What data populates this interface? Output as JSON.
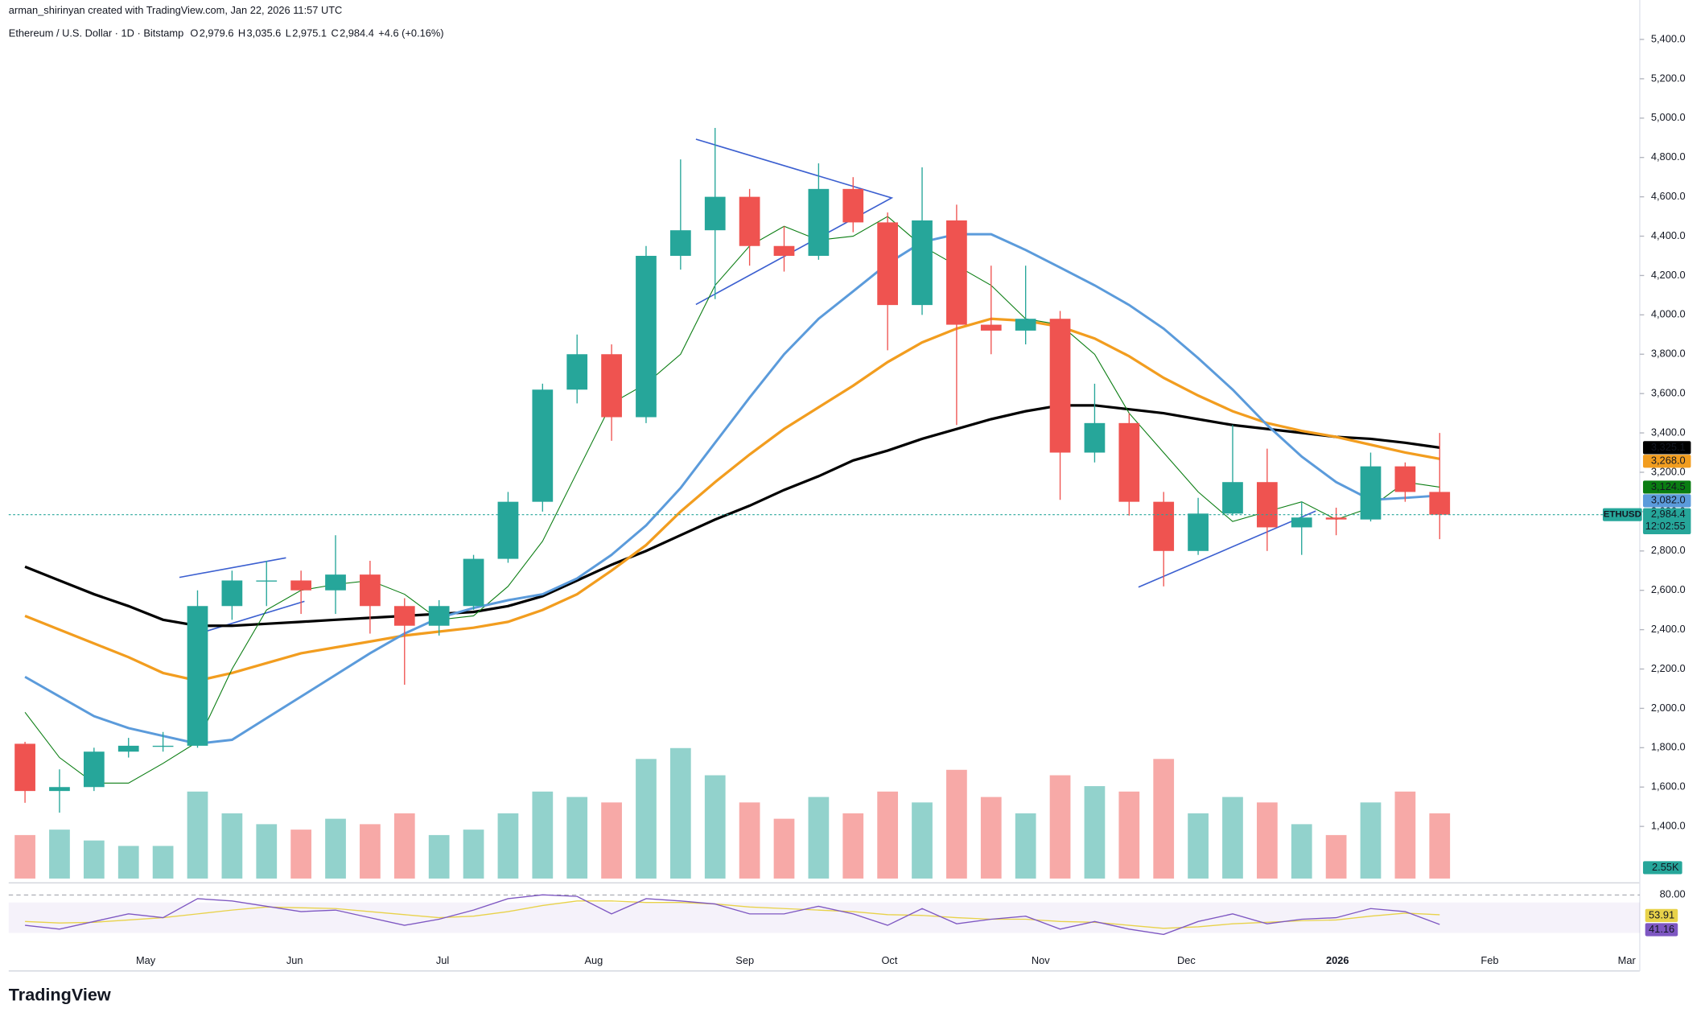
{
  "header": {
    "credit": "arman_shirinyan created with TradingView.com, Jan 22, 2026 11:57 UTC",
    "symbol": "Ethereum / U.S. Dollar · 1D · Bitstamp",
    "ohlc": [
      {
        "key": "O",
        "value": "2,979.6"
      },
      {
        "key": "H",
        "value": "3,035.6"
      },
      {
        "key": "L",
        "value": "2,975.1"
      },
      {
        "key": "C",
        "value": "2,984.4"
      }
    ],
    "change": "+4.6 (+0.16%)"
  },
  "chart_data": {
    "type": "candlestick",
    "open": [
      1820,
      1580,
      1600,
      1780,
      1810,
      1810,
      2520,
      2650,
      2650,
      2600,
      2680,
      2520,
      2420,
      2520,
      2760,
      3050,
      3620,
      3800,
      3480,
      4300,
      4430,
      4600,
      4350,
      4300,
      4640,
      4470,
      4050,
      4480,
      3950,
      3920,
      3980,
      3300,
      3450,
      3050,
      2800,
      2990,
      3150,
      2920,
      2970,
      2960,
      3230,
      3100
    ],
    "high": [
      1830,
      1690,
      1800,
      1850,
      1880,
      2600,
      2700,
      2750,
      2700,
      2880,
      2750,
      2560,
      2550,
      2780,
      3100,
      3650,
      3900,
      3850,
      4350,
      4790,
      4950,
      4640,
      4450,
      4770,
      4700,
      4520,
      4750,
      4560,
      4250,
      4250,
      4020,
      3650,
      3500,
      3100,
      3070,
      3440,
      3320,
      3050,
      3020,
      3300,
      3250,
      3400
    ],
    "low": [
      1520,
      1470,
      1580,
      1750,
      1780,
      1800,
      2450,
      2520,
      2480,
      2480,
      2380,
      2120,
      2370,
      2500,
      2740,
      3000,
      3550,
      3360,
      3450,
      4230,
      4080,
      4250,
      4220,
      4280,
      4420,
      3820,
      4000,
      3440,
      3800,
      3850,
      3060,
      3250,
      2980,
      2620,
      2780,
      2980,
      2800,
      2780,
      2880,
      2950,
      3050,
      2860
    ],
    "close": [
      1580,
      1600,
      1780,
      1810,
      1810,
      2520,
      2650,
      2650,
      2600,
      2680,
      2520,
      2420,
      2520,
      2760,
      3050,
      3620,
      3800,
      3480,
      4300,
      4430,
      4600,
      4350,
      4300,
      4640,
      4470,
      4050,
      4480,
      3950,
      3920,
      3980,
      3300,
      3450,
      3050,
      2800,
      2990,
      3150,
      2920,
      2970,
      2960,
      3230,
      3100,
      2984.4
    ],
    "up_color": "#26a69a",
    "down_color": "#ef5350",
    "ylim": [
      1135,
      5545
    ],
    "yticks": [
      {
        "value": 1400,
        "label": "1,400.0"
      },
      {
        "value": 1600,
        "label": "1,600.0"
      },
      {
        "value": 1800,
        "label": "1,800.0"
      },
      {
        "value": 2000,
        "label": "2,000.0"
      },
      {
        "value": 2200,
        "label": "2,200.0"
      },
      {
        "value": 2400,
        "label": "2,400.0"
      },
      {
        "value": 2600,
        "label": "2,600.0"
      },
      {
        "value": 2800,
        "label": "2,800.0"
      },
      {
        "value": 3000,
        "label": "3,000.0"
      },
      {
        "value": 3200,
        "label": "3,200.0"
      },
      {
        "value": 3400,
        "label": "3,400.0"
      },
      {
        "value": 3600,
        "label": "3,600.0"
      },
      {
        "value": 3800,
        "label": "3,800.0"
      },
      {
        "value": 4000,
        "label": "4,000.0"
      },
      {
        "value": 4200,
        "label": "4,200.0"
      },
      {
        "value": 4400,
        "label": "4,400.0"
      },
      {
        "value": 4600,
        "label": "4,600.0"
      },
      {
        "value": 4800,
        "label": "4,800.0"
      },
      {
        "value": 5000,
        "label": "5,000.0"
      },
      {
        "value": 5200,
        "label": "5,200.0"
      },
      {
        "value": 5400,
        "label": "5,400.0"
      }
    ],
    "x_labels": [
      "May",
      "Jun",
      "Jul",
      "Aug",
      "Sep",
      "Oct",
      "Nov",
      "Dec",
      "2026",
      "Feb",
      "Mar"
    ],
    "moving_averages": [
      {
        "color": "#000000",
        "width": 2.4,
        "last_label": "3,325.1",
        "values": [
          2720,
          2650,
          2580,
          2520,
          2450,
          2420,
          2420,
          2430,
          2440,
          2450,
          2460,
          2470,
          2480,
          2490,
          2520,
          2570,
          2650,
          2730,
          2800,
          2880,
          2960,
          3030,
          3110,
          3180,
          3260,
          3310,
          3370,
          3420,
          3470,
          3510,
          3540,
          3540,
          3520,
          3500,
          3470,
          3440,
          3420,
          3400,
          3380,
          3370,
          3350,
          3325.1
        ]
      },
      {
        "color": "#f29d1f",
        "width": 2.4,
        "last_label": "3,268.0",
        "values": [
          2470,
          2400,
          2330,
          2260,
          2180,
          2140,
          2180,
          2230,
          2280,
          2310,
          2340,
          2370,
          2390,
          2410,
          2440,
          2500,
          2580,
          2700,
          2830,
          3000,
          3150,
          3290,
          3420,
          3530,
          3640,
          3760,
          3860,
          3930,
          3980,
          3970,
          3940,
          3880,
          3790,
          3680,
          3590,
          3510,
          3450,
          3410,
          3380,
          3340,
          3300,
          3268.0
        ]
      },
      {
        "color": "#0a7d12",
        "width": 0.8,
        "last_label": "3,124.5",
        "values": [
          1980,
          1750,
          1620,
          1620,
          1720,
          1830,
          2200,
          2500,
          2600,
          2630,
          2650,
          2580,
          2450,
          2470,
          2620,
          2850,
          3200,
          3550,
          3650,
          3800,
          4150,
          4350,
          4450,
          4380,
          4400,
          4500,
          4350,
          4250,
          4150,
          3980,
          3950,
          3800,
          3500,
          3300,
          3100,
          2950,
          3000,
          3050,
          2960,
          3020,
          3150,
          3124.5
        ]
      },
      {
        "color": "#5b9bdb",
        "width": 2.2,
        "last_label": "3,082.0",
        "values": [
          2160,
          2060,
          1960,
          1900,
          1860,
          1820,
          1840,
          1950,
          2060,
          2170,
          2280,
          2380,
          2460,
          2510,
          2550,
          2580,
          2660,
          2780,
          2930,
          3120,
          3350,
          3580,
          3800,
          3980,
          4120,
          4260,
          4370,
          4410,
          4410,
          4330,
          4240,
          4150,
          4050,
          3930,
          3780,
          3620,
          3440,
          3280,
          3150,
          3060,
          3070,
          3082.0
        ]
      }
    ],
    "last_price": {
      "symbol": "ETHUSD",
      "value": 2984.4,
      "label": "2,984.4",
      "countdown": "12:02:55"
    },
    "volume": [
      40000,
      45000,
      35000,
      30000,
      30000,
      80000,
      60000,
      50000,
      45000,
      55000,
      50000,
      60000,
      40000,
      45000,
      60000,
      80000,
      75000,
      70000,
      110000,
      120000,
      95000,
      70000,
      55000,
      75000,
      60000,
      80000,
      70000,
      100000,
      75000,
      60000,
      95000,
      85000,
      80000,
      110000,
      60000,
      75000,
      70000,
      50000,
      40000,
      70000,
      80000,
      60000
    ],
    "vlim": [
      0,
      200000
    ],
    "volume_badge": "2.55K",
    "rsi": {
      "ylim": [
        0,
        100
      ],
      "yticks": [
        {
          "value": 80,
          "label": "80.00"
        }
      ],
      "values": [
        40,
        35,
        45,
        55,
        50,
        75,
        72,
        65,
        58,
        60,
        50,
        40,
        48,
        60,
        75,
        80,
        78,
        55,
        75,
        72,
        68,
        55,
        55,
        65,
        55,
        40,
        62,
        42,
        48,
        52,
        35,
        45,
        35,
        28,
        45,
        55,
        42,
        48,
        50,
        62,
        58,
        41.16
      ],
      "value_label": "41.16",
      "color": "#7e57c2",
      "ma_values": [
        45,
        43,
        44,
        47,
        50,
        55,
        60,
        64,
        63,
        62,
        58,
        54,
        50,
        52,
        58,
        66,
        72,
        72,
        70,
        70,
        68,
        64,
        62,
        60,
        58,
        54,
        53,
        50,
        48,
        48,
        45,
        44,
        40,
        36,
        38,
        42,
        44,
        46,
        47,
        52,
        56,
        53.91
      ],
      "ma_label": "53.91",
      "ma_color": "#e8d24a"
    }
  },
  "footer": {
    "brand": "TradingView"
  }
}
